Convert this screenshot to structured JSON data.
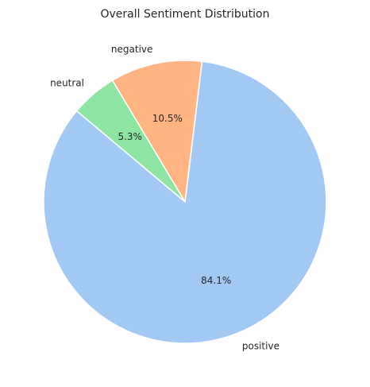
{
  "chart_data": {
    "type": "pie",
    "title": "Overall Sentiment Distribution",
    "slices": [
      {
        "label": "positive",
        "value": 84.1,
        "pct_label": "84.1%",
        "color": "#a1c9f4"
      },
      {
        "label": "negative",
        "value": 10.5,
        "pct_label": "10.5%",
        "color": "#ffb482"
      },
      {
        "label": "neutral",
        "value": 5.3,
        "pct_label": "5.3%",
        "color": "#8de5a1"
      }
    ],
    "start_angle_deg": 140,
    "direction": "counterclockwise",
    "edge_color": "#ffffff"
  }
}
